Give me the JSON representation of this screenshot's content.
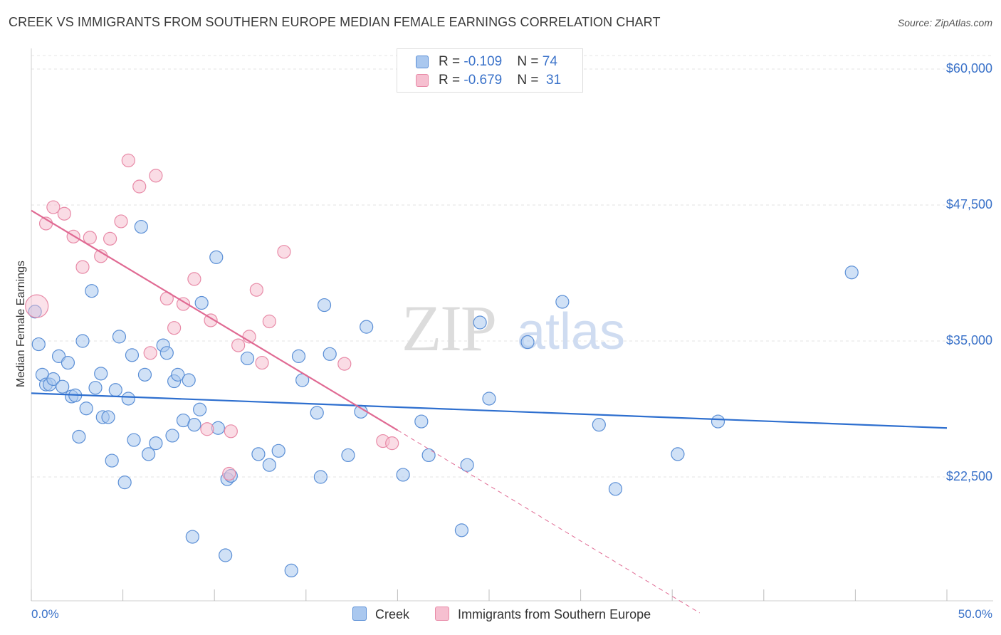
{
  "header": {
    "title": "CREEK VS IMMIGRANTS FROM SOUTHERN EUROPE MEDIAN FEMALE EARNINGS CORRELATION CHART",
    "source": "Source: ZipAtlas.com"
  },
  "legend": {
    "row1": {
      "r_label": "R = ",
      "r_value": "-0.109",
      "n_label": "N = ",
      "n_value": "74"
    },
    "row2": {
      "r_label": "R = ",
      "r_value": "-0.679",
      "n_label": "N = ",
      "n_value": "31"
    }
  },
  "watermark": {
    "part1": "ZIP",
    "part2": "atlas"
  },
  "colors": {
    "blue_fill": "#aac8ef",
    "blue_stroke": "#5b8fd6",
    "blue_line": "#2e6fcf",
    "pink_fill": "#f6bfd0",
    "pink_stroke": "#e88aa7",
    "pink_line": "#e06a93",
    "accent_text": "#3a72c9"
  },
  "chart_data": {
    "type": "scatter",
    "title": "CREEK VS IMMIGRANTS FROM SOUTHERN EUROPE MEDIAN FEMALE EARNINGS CORRELATION CHART",
    "xlabel": "",
    "ylabel": "Median Female Earnings",
    "xlim": [
      0,
      50
    ],
    "ylim": [
      10000,
      62500
    ],
    "x_tick_labels": {
      "left": "0.0%",
      "right": "50.0%"
    },
    "y_ticks": [
      {
        "value": 60000,
        "label": "$60,000"
      },
      {
        "value": 47500,
        "label": "$47,500"
      },
      {
        "value": 35000,
        "label": "$35,000"
      },
      {
        "value": 22500,
        "label": "$22,500"
      }
    ],
    "series": [
      {
        "name": "Creek",
        "r": -0.109,
        "n": 74,
        "trend": {
          "x0": 0,
          "y0": 30200,
          "x1": 50,
          "y1": 27000,
          "dashed_to": null
        },
        "points": [
          [
            0.2,
            37700
          ],
          [
            0.4,
            34700
          ],
          [
            0.6,
            31900
          ],
          [
            0.8,
            31000
          ],
          [
            1.0,
            31000
          ],
          [
            1.2,
            31500
          ],
          [
            1.5,
            33600
          ],
          [
            1.7,
            30800
          ],
          [
            2.0,
            33000
          ],
          [
            2.2,
            29900
          ],
          [
            2.4,
            30000
          ],
          [
            2.6,
            26200
          ],
          [
            2.8,
            35000
          ],
          [
            3.0,
            28800
          ],
          [
            3.3,
            39600
          ],
          [
            3.5,
            30700
          ],
          [
            3.8,
            32000
          ],
          [
            3.9,
            28000
          ],
          [
            4.2,
            28000
          ],
          [
            4.4,
            24000
          ],
          [
            4.6,
            30500
          ],
          [
            4.8,
            35400
          ],
          [
            5.1,
            22000
          ],
          [
            5.3,
            29700
          ],
          [
            5.5,
            33700
          ],
          [
            5.6,
            25900
          ],
          [
            6.0,
            45500
          ],
          [
            6.2,
            31900
          ],
          [
            6.4,
            24600
          ],
          [
            6.8,
            25600
          ],
          [
            7.2,
            34600
          ],
          [
            7.4,
            33900
          ],
          [
            7.7,
            26300
          ],
          [
            7.8,
            31300
          ],
          [
            8.0,
            31900
          ],
          [
            8.3,
            27700
          ],
          [
            8.6,
            31400
          ],
          [
            8.8,
            17000
          ],
          [
            8.9,
            27300
          ],
          [
            9.2,
            28700
          ],
          [
            9.3,
            38500
          ],
          [
            10.1,
            42700
          ],
          [
            10.2,
            27000
          ],
          [
            10.6,
            15300
          ],
          [
            10.7,
            22300
          ],
          [
            10.9,
            22600
          ],
          [
            11.8,
            33400
          ],
          [
            12.4,
            24600
          ],
          [
            13.0,
            23600
          ],
          [
            13.5,
            24900
          ],
          [
            14.2,
            13900
          ],
          [
            14.6,
            33600
          ],
          [
            14.8,
            31400
          ],
          [
            15.6,
            28400
          ],
          [
            15.8,
            22500
          ],
          [
            16.0,
            38300
          ],
          [
            16.3,
            33800
          ],
          [
            17.3,
            24500
          ],
          [
            18.0,
            28500
          ],
          [
            18.3,
            36300
          ],
          [
            20.3,
            22700
          ],
          [
            21.3,
            27600
          ],
          [
            21.7,
            24500
          ],
          [
            23.5,
            17600
          ],
          [
            23.8,
            23600
          ],
          [
            24.5,
            36700
          ],
          [
            25.0,
            29700
          ],
          [
            27.1,
            34900
          ],
          [
            29.0,
            38600
          ],
          [
            31.0,
            27300
          ],
          [
            31.9,
            21400
          ],
          [
            35.3,
            24600
          ],
          [
            37.5,
            27600
          ],
          [
            44.8,
            41300
          ]
        ]
      },
      {
        "name": "Immigrants from Southern Europe",
        "r": -0.679,
        "n": 31,
        "trend": {
          "x0": 0,
          "y0": 47000,
          "x1": 20,
          "y1": 26800,
          "dashed_to": {
            "x": 36.5,
            "y": 10000
          }
        },
        "points": [
          [
            0.3,
            38200
          ],
          [
            0.8,
            45800
          ],
          [
            1.2,
            47300
          ],
          [
            1.8,
            46700
          ],
          [
            2.3,
            44600
          ],
          [
            2.8,
            41800
          ],
          [
            3.2,
            44500
          ],
          [
            3.8,
            42800
          ],
          [
            4.3,
            44400
          ],
          [
            4.9,
            46000
          ],
          [
            5.3,
            51600
          ],
          [
            5.9,
            49200
          ],
          [
            6.5,
            33900
          ],
          [
            6.8,
            50200
          ],
          [
            7.4,
            38900
          ],
          [
            7.8,
            36200
          ],
          [
            8.3,
            38400
          ],
          [
            8.9,
            40700
          ],
          [
            9.6,
            26900
          ],
          [
            9.8,
            36900
          ],
          [
            10.8,
            22800
          ],
          [
            10.9,
            26700
          ],
          [
            11.3,
            34600
          ],
          [
            11.9,
            35400
          ],
          [
            12.3,
            39700
          ],
          [
            12.6,
            33000
          ],
          [
            13.0,
            36800
          ],
          [
            13.8,
            43200
          ],
          [
            17.1,
            32900
          ],
          [
            19.2,
            25800
          ],
          [
            19.7,
            25600
          ]
        ]
      }
    ]
  }
}
